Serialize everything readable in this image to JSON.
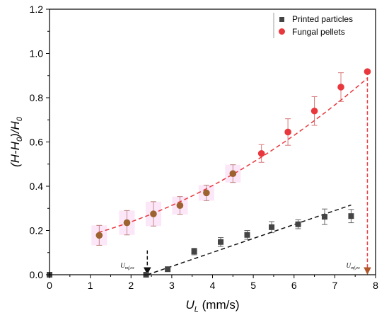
{
  "chart_data": {
    "type": "scatter",
    "xlabel": "U",
    "xlabel_sub": "L",
    "xlabel_unit": " (mm/s)",
    "ylabel": "(H-H",
    "ylabel_sub": "0",
    "ylabel_mid": ")/H",
    "ylabel_sub2": "0",
    "xlim": [
      0,
      8
    ],
    "ylim": [
      0,
      1.2
    ],
    "x_ticks": [
      "0",
      "1",
      "2",
      "3",
      "4",
      "5",
      "6",
      "7",
      "8"
    ],
    "y_ticks": [
      "0.0",
      "0.2",
      "0.4",
      "0.6",
      "0.8",
      "1.0",
      "1.2"
    ],
    "legend": {
      "placement": "top-right"
    },
    "series": [
      {
        "name": "Printed particles",
        "marker": "square",
        "color": "#444444",
        "points": [
          {
            "x": 0.0,
            "y": 0.0,
            "err": 0.0
          },
          {
            "x": 2.37,
            "y": 0.0,
            "err": 0.0
          },
          {
            "x": 2.9,
            "y": 0.025,
            "err": 0.01
          },
          {
            "x": 3.55,
            "y": 0.105,
            "err": 0.015
          },
          {
            "x": 4.2,
            "y": 0.148,
            "err": 0.02
          },
          {
            "x": 4.85,
            "y": 0.18,
            "err": 0.02
          },
          {
            "x": 5.45,
            "y": 0.215,
            "err": 0.025
          },
          {
            "x": 6.1,
            "y": 0.228,
            "err": 0.02
          },
          {
            "x": 6.75,
            "y": 0.262,
            "err": 0.035
          },
          {
            "x": 7.4,
            "y": 0.265,
            "err": 0.03
          }
        ],
        "fit": {
          "x0": 2.4,
          "y0": 0.0,
          "x1": 7.4,
          "y1": 0.315,
          "color": "#111111"
        }
      },
      {
        "name": "Fungal pellets",
        "marker": "circle",
        "color": "#e8383d",
        "overlap_color": "#9c6230",
        "points": [
          {
            "x": 1.22,
            "y": 0.178,
            "err": 0.045,
            "overlap": true
          },
          {
            "x": 1.9,
            "y": 0.235,
            "err": 0.055,
            "overlap": true
          },
          {
            "x": 2.55,
            "y": 0.275,
            "err": 0.055,
            "overlap": true
          },
          {
            "x": 3.2,
            "y": 0.313,
            "err": 0.04,
            "overlap": true
          },
          {
            "x": 3.85,
            "y": 0.37,
            "err": 0.035,
            "overlap": true
          },
          {
            "x": 4.5,
            "y": 0.457,
            "err": 0.04,
            "overlap": true
          },
          {
            "x": 5.2,
            "y": 0.548,
            "err": 0.04,
            "overlap": false
          },
          {
            "x": 5.85,
            "y": 0.645,
            "err": 0.06,
            "overlap": false
          },
          {
            "x": 6.5,
            "y": 0.74,
            "err": 0.065,
            "overlap": false
          },
          {
            "x": 7.15,
            "y": 0.848,
            "err": 0.065,
            "overlap": false
          },
          {
            "x": 7.8,
            "y": 0.918,
            "err": 0.0,
            "overlap": false
          }
        ],
        "fit": {
          "x0": 1.2,
          "x1": 7.8,
          "coeffs": [
            0.138,
            0.0348,
            0.00787
          ],
          "color": "#e8383d"
        }
      }
    ],
    "annotations": [
      {
        "label": "U",
        "sub": "mf,ex",
        "x": 2.4,
        "y_from": 0.11,
        "y_to": 0.0,
        "color": "#111111"
      },
      {
        "label": "U",
        "sub": "mf,ex",
        "x": 7.8,
        "y_from": 0.918,
        "y_to": 0.0,
        "color": "#e8383d"
      }
    ]
  }
}
